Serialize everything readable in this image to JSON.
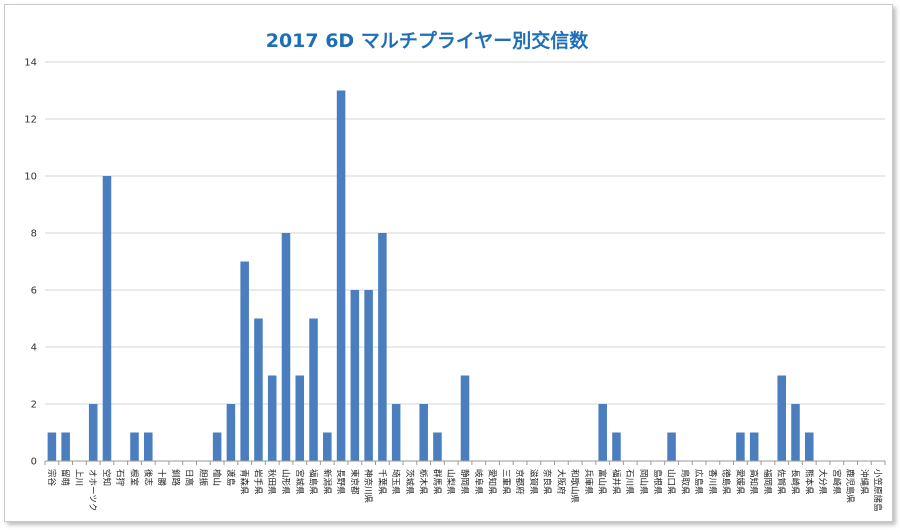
{
  "chart_data": {
    "type": "bar",
    "title": "2017 6D  マルチプライヤー別交信数",
    "xlabel": "",
    "ylabel": "",
    "ylim": [
      0,
      14
    ],
    "yticks": [
      0,
      2,
      4,
      6,
      8,
      10,
      12,
      14
    ],
    "grid": true,
    "legend": "none",
    "bar_color": "#4a7ebf",
    "title_color": "#1f6fb8",
    "categories": [
      "宗谷",
      "留萌",
      "上川",
      "オホーツク",
      "空知",
      "石狩",
      "根室",
      "後志",
      "十勝",
      "釧路",
      "日高",
      "胆振",
      "檜山",
      "渡島",
      "青森県",
      "岩手県",
      "秋田県",
      "山形県",
      "宮城県",
      "福島県",
      "新潟県",
      "長野県",
      "東京都",
      "神奈川県",
      "千葉県",
      "埼玉県",
      "茨城県",
      "栃木県",
      "群馬県",
      "山梨県",
      "静岡県",
      "岐阜県",
      "愛知県",
      "三重県",
      "京都府",
      "滋賀県",
      "奈良県",
      "大阪府",
      "和歌山県",
      "兵庫県",
      "富山県",
      "福井県",
      "石川県",
      "岡山県",
      "島根県",
      "山口県",
      "鳥取県",
      "広島県",
      "香川県",
      "徳島県",
      "愛媛県",
      "高知県",
      "福岡県",
      "佐賀県",
      "長崎県",
      "熊本県",
      "大分県",
      "宮崎県",
      "鹿児島県",
      "沖縄県",
      "小笠原諸島"
    ],
    "values": [
      1,
      1,
      0,
      2,
      10,
      0,
      1,
      1,
      0,
      0,
      0,
      0,
      1,
      2,
      7,
      5,
      3,
      8,
      3,
      5,
      1,
      13,
      6,
      6,
      8,
      2,
      0,
      2,
      1,
      0,
      3,
      0,
      0,
      0,
      0,
      0,
      0,
      0,
      0,
      0,
      2,
      1,
      0,
      0,
      0,
      1,
      0,
      0,
      0,
      0,
      1,
      1,
      0,
      3,
      2,
      1,
      0,
      0,
      0,
      0,
      0
    ]
  }
}
